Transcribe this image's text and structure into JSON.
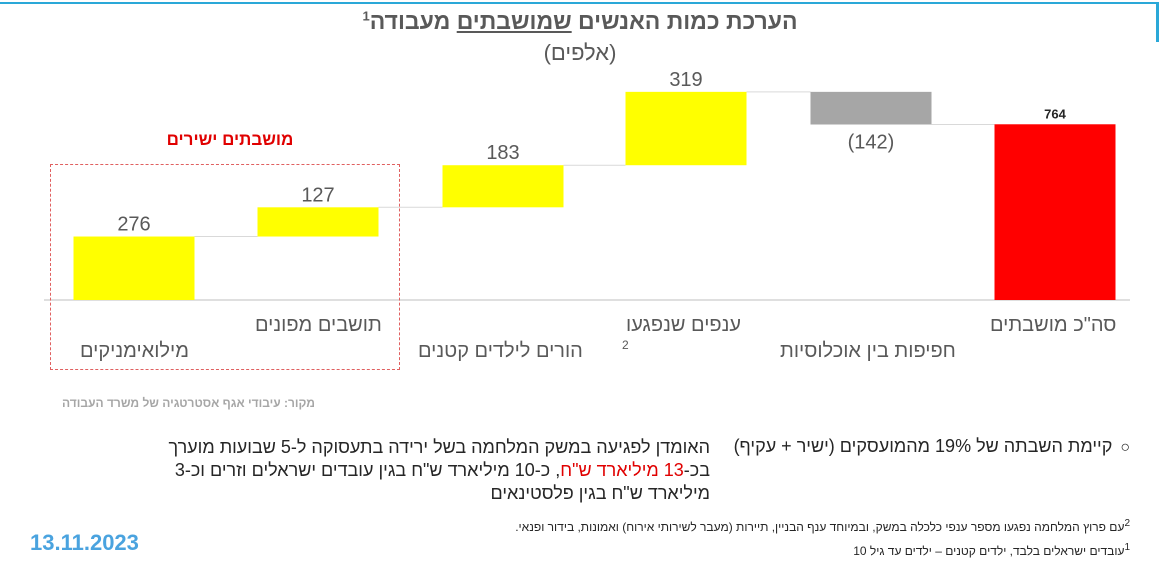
{
  "title": {
    "part_before": "הערכת כמות האנשים ",
    "part_underlined": "שמושבתים",
    "part_after": " מעבודה",
    "superscript": "1",
    "subtitle": "(אלפים)"
  },
  "chart_data": {
    "type": "waterfall",
    "categories": [
      "מילואימניקים",
      "תושבים מפונים",
      "הורים לילדים קטנים",
      "ענפים שנפגעו",
      "חפיפות בין אוכלוסיות",
      "סה\"כ מושבתים"
    ],
    "values": [
      276,
      127,
      183,
      319,
      -142,
      764
    ],
    "value_labels": [
      "276",
      "127",
      "183",
      "319",
      "(142)",
      "764"
    ],
    "kinds": [
      "increase",
      "increase",
      "increase",
      "increase",
      "decrease",
      "total"
    ],
    "colors": {
      "increase": "#ffff00",
      "decrease": "#a6a6a6",
      "total": "#ff0000",
      "connector": "#d9d9d9",
      "axis": "#bfbfbf"
    },
    "ylim": [
      0,
      900
    ]
  },
  "category_footnote_mark": "2",
  "direct_group_label": "מושבתים ישירים",
  "source": "מקור: עיבודי אגף אסטרטגיה של משרד העבודה",
  "bullets": {
    "right_text": "קיימת השבתה של 19% מהמועסקים (ישיר + עקיף)",
    "left_part1": "האומדן לפגיעה במשק המלחמה בשל ירידה בתעסוקה ל-5 שבועות מוערך בכ-",
    "left_red": "13 מיליארד ש\"ח",
    "left_part2": ", כ-10 מיליארד ש\"ח בגין עובדים ישראלים וזרים וכ-3 מיליארד ש\"ח בגין פלסטינאים"
  },
  "footnotes": {
    "fn2_mark": "2",
    "fn2": "עם פרוץ המלחמה נפגעו מספר ענפי כלכלה במשק, ובמיוחד ענף הבניין, תיירות (מעבר לשירותי אירוח) ואמונות, בידור ופנאי.",
    "fn1_mark": "1",
    "fn1": "עובדים ישראלים בלבד, ילדים קטנים – ילדים עד גיל 10"
  },
  "date": "13.11.2023"
}
